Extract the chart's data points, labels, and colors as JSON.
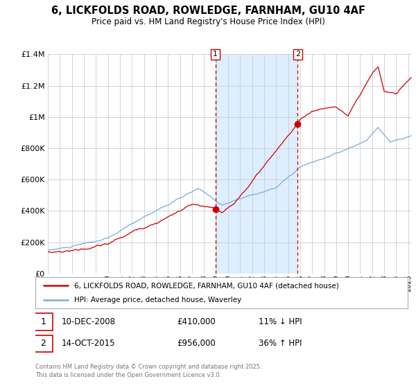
{
  "title": "6, LICKFOLDS ROAD, ROWLEDGE, FARNHAM, GU10 4AF",
  "subtitle": "Price paid vs. HM Land Registry's House Price Index (HPI)",
  "legend_label_red": "6, LICKFOLDS ROAD, ROWLEDGE, FARNHAM, GU10 4AF (detached house)",
  "legend_label_blue": "HPI: Average price, detached house, Waverley",
  "annotation1_date": "10-DEC-2008",
  "annotation1_price": "£410,000",
  "annotation1_hpi": "11% ↓ HPI",
  "annotation2_date": "14-OCT-2015",
  "annotation2_price": "£956,000",
  "annotation2_hpi": "36% ↑ HPI",
  "footer": "Contains HM Land Registry data © Crown copyright and database right 2025.\nThis data is licensed under the Open Government Licence v3.0.",
  "xmin": 1995,
  "xmax": 2025.3,
  "ymin": 0,
  "ymax": 1400000,
  "sale1_year": 2008.95,
  "sale1_value": 410000,
  "sale2_year": 2015.79,
  "sale2_value": 956000,
  "red_color": "#cc0000",
  "blue_color": "#7aaadd",
  "shading_color": "#ddeeff",
  "background_color": "#ffffff",
  "grid_color": "#cccccc",
  "vline_color": "#cc0000",
  "legend_border_color": "#aaaaaa",
  "annot_border_color": "#cc0000",
  "footer_color": "#777777"
}
